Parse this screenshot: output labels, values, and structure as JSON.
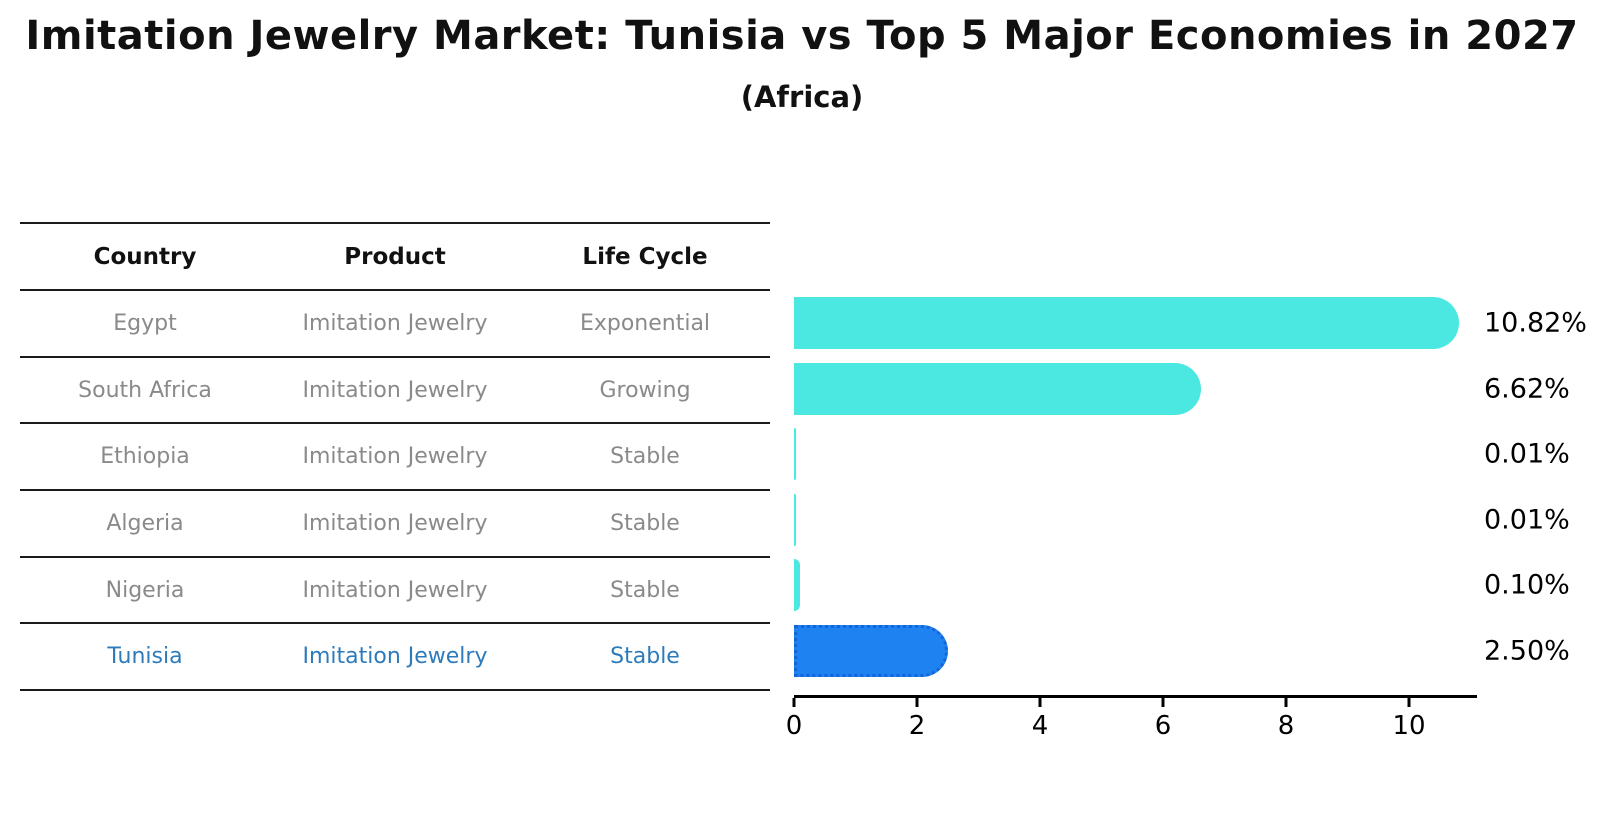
{
  "header": {
    "title": "Imitation Jewelry Market: Tunisia vs Top 5 Major Economies in 2027",
    "subtitle": "(Africa)"
  },
  "table": {
    "columns": [
      "Country",
      "Product",
      "Life Cycle"
    ],
    "rows": [
      {
        "country": "Egypt",
        "product": "Imitation Jewelry",
        "life_cycle": "Exponential",
        "highlight": false
      },
      {
        "country": "South Africa",
        "product": "Imitation Jewelry",
        "life_cycle": "Growing",
        "highlight": false
      },
      {
        "country": "Ethiopia",
        "product": "Imitation Jewelry",
        "life_cycle": "Stable",
        "highlight": false
      },
      {
        "country": "Algeria",
        "product": "Imitation Jewelry",
        "life_cycle": "Stable",
        "highlight": false
      },
      {
        "country": "Nigeria",
        "product": "Imitation Jewelry",
        "life_cycle": "Stable",
        "highlight": false
      },
      {
        "country": "Tunisia",
        "product": "Imitation Jewelry",
        "life_cycle": "Stable",
        "highlight": true
      }
    ]
  },
  "chart_data": {
    "type": "bar",
    "orientation": "horizontal",
    "title": "Imitation Jewelry Market: Tunisia vs Top 5 Major Economies in 2027",
    "subtitle": "(Africa)",
    "categories": [
      "Egypt",
      "South Africa",
      "Ethiopia",
      "Algeria",
      "Nigeria",
      "Tunisia"
    ],
    "values": [
      10.82,
      6.62,
      0.01,
      0.01,
      0.1,
      2.5
    ],
    "value_labels": [
      "10.82%",
      "6.62%",
      "0.01%",
      "0.01%",
      "0.10%",
      "2.50%"
    ],
    "highlight_index": 5,
    "xlabel": "",
    "ylabel": "",
    "xlim": [
      0,
      11.1
    ],
    "xticks": [
      0,
      2,
      4,
      6,
      8,
      10
    ],
    "grid": false,
    "legend": false,
    "colors": {
      "bar_default": "#4AE8E0",
      "bar_highlight": "#1E82F0",
      "bar_highlight_border": "#1565D8",
      "row_text": "#8a8a8a",
      "highlight_text": "#2E7BBB"
    }
  }
}
